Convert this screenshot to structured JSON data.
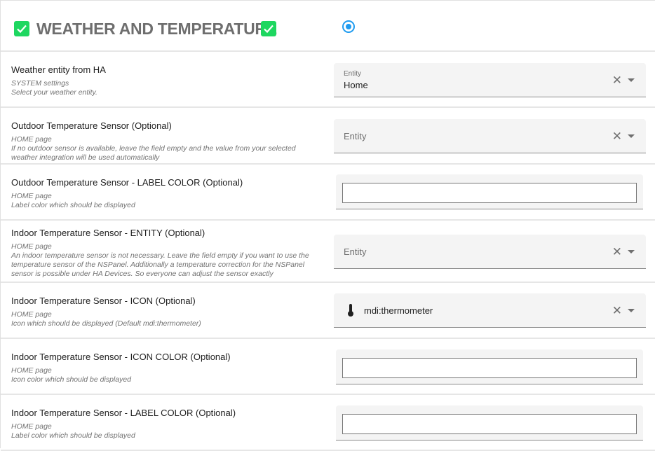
{
  "section": {
    "title": "WEATHER AND TEMPERATURE",
    "checkbox_color": "#1ed760",
    "radio_color": "#1e9bf0",
    "radio_checked": true
  },
  "rows": [
    {
      "title": "Weather entity from HA",
      "desc": [
        "SYSTEM settings",
        "Select your weather entity."
      ],
      "control": "entity",
      "label": "Entity",
      "value": "Home"
    },
    {
      "title": "Outdoor Temperature Sensor (Optional)",
      "desc": [
        "HOME page",
        "If no outdoor sensor is available, leave the field empty and the value from your selected weather integration will be used automatically"
      ],
      "control": "entity",
      "placeholder": "Entity"
    },
    {
      "title": "Outdoor Temperature Sensor - LABEL COLOR (Optional)",
      "desc": [
        "HOME page",
        "Label color which should be displayed"
      ],
      "control": "color",
      "value": ""
    },
    {
      "title": "Indoor Temperature Sensor - ENTITY (Optional)",
      "desc": [
        "HOME page",
        "An indoor temperature sensor is not necessary. Leave the field empty if you want to use the temperature sensor of the NSPanel. Additionally a temperature correction for the NSPanel sensor is possible under HA Devices. So everyone can adjust the sensor exactly"
      ],
      "control": "entity",
      "placeholder": "Entity"
    },
    {
      "title": "Indoor Temperature Sensor - ICON (Optional)",
      "desc": [
        "HOME page",
        "Icon which should be displayed (Default mdi:thermometer)"
      ],
      "control": "icon",
      "value": "mdi:thermometer",
      "icon": "thermometer-icon"
    },
    {
      "title": "Indoor Temperature Sensor - ICON COLOR (Optional)",
      "desc": [
        "HOME page",
        "Icon color which should be displayed"
      ],
      "control": "color",
      "value": ""
    },
    {
      "title": "Indoor Temperature Sensor - LABEL COLOR (Optional)",
      "desc": [
        "HOME page",
        "Label color which should be displayed"
      ],
      "control": "color",
      "value": ""
    }
  ]
}
